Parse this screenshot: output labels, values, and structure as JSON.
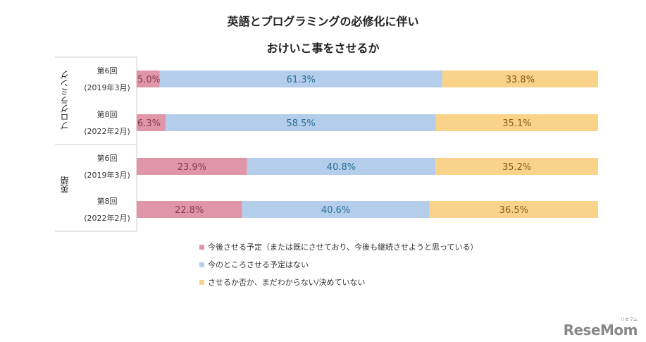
{
  "chart_data": {
    "type": "bar",
    "orientation": "horizontal-stacked-100",
    "title": [
      "英語とプログラミングの必修化に伴い",
      "おけいこ事をさせるか"
    ],
    "groups": [
      {
        "name": "プログラミング",
        "rows": [
          {
            "line1": "第6回",
            "line2": "(2019年3月)",
            "values": [
              5.0,
              61.3,
              33.8
            ],
            "labels": [
              "5.0%",
              "61.3%",
              "33.8%"
            ]
          },
          {
            "line1": "第8回",
            "line2": "(2022年2月)",
            "values": [
              6.3,
              58.5,
              35.1
            ],
            "labels": [
              "6.3%",
              "58.5%",
              "35.1%"
            ]
          }
        ]
      },
      {
        "name": "英語",
        "rows": [
          {
            "line1": "第6回",
            "line2": "(2019年3月)",
            "values": [
              23.9,
              40.8,
              35.2
            ],
            "labels": [
              "23.9%",
              "40.8%",
              "35.2%"
            ]
          },
          {
            "line1": "第8回",
            "line2": "(2022年2月)",
            "values": [
              22.8,
              40.6,
              36.5
            ],
            "labels": [
              "22.8%",
              "40.6%",
              "36.5%"
            ]
          }
        ]
      }
    ],
    "series": [
      {
        "name": "今後させる予定（または既にさせており、今後も継続させようと思っている）",
        "color": "#e096a8",
        "text_color": "#8a3a55"
      },
      {
        "name": "今のところさせる予定はない",
        "color": "#b4cdeb",
        "text_color": "#2a6f95"
      },
      {
        "name": "させるか否か、まだわからない/決めていない",
        "color": "#fad38a",
        "text_color": "#8a5a15"
      }
    ],
    "legend_position": "bottom",
    "grid": false
  },
  "logo": {
    "text": "ReseMom",
    "sub": "リセマム"
  }
}
